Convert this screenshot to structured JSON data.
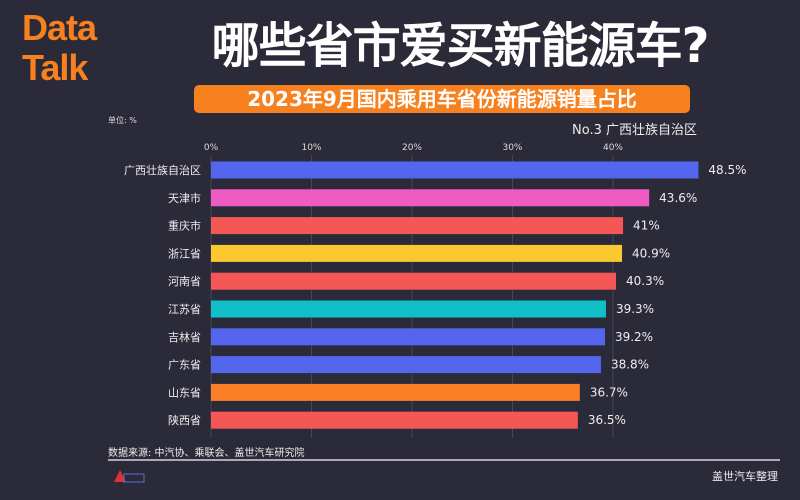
{
  "logo": "Data Talk",
  "logo_lines": [
    "Data",
    "Talk"
  ],
  "title": "哪些省市爱买新能源车?",
  "subtitle": "2023年9月国内乘用车省份新能源销量占比",
  "unit": "单位: %",
  "rank_label": "No.3 广西壮族自治区",
  "source": "数据来源: 中汽协、乘联会、盖世汽车研究院",
  "credit": "盖世汽车整理",
  "colors": {
    "background": "#2b2a38",
    "accent": "#f7801f"
  },
  "chart_data": {
    "type": "bar",
    "orientation": "horizontal",
    "title": "2023年9月国内乘用车省份新能源销量占比",
    "xlabel": "",
    "ylabel": "",
    "unit": "单位: %",
    "xlim": [
      0,
      50
    ],
    "grid": true,
    "x_ticks": [
      "0%",
      "10%",
      "20%",
      "30%",
      "40%"
    ],
    "categories": [
      "广西壮族自治区",
      "天津市",
      "重庆市",
      "浙江省",
      "河南省",
      "江苏省",
      "吉林省",
      "广东省",
      "山东省",
      "陕西省"
    ],
    "values": [
      48.5,
      43.6,
      41,
      40.9,
      40.3,
      39.3,
      39.2,
      38.8,
      36.7,
      36.5
    ],
    "value_labels": [
      "48.5%",
      "43.6%",
      "41%",
      "40.9%",
      "40.3%",
      "39.3%",
      "39.2%",
      "38.8%",
      "36.7%",
      "36.5%"
    ],
    "bar_colors": [
      "#5466ee",
      "#ef5ac3",
      "#f55757",
      "#fdc82f",
      "#f55757",
      "#10bfc8",
      "#5466ee",
      "#5466ee",
      "#fb7f26",
      "#f55757"
    ]
  }
}
